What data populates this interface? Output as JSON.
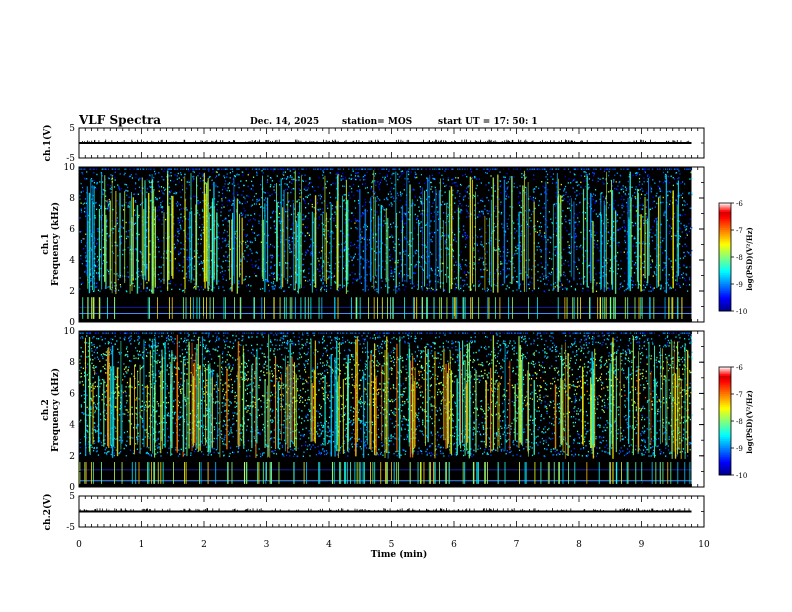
{
  "header": {
    "title": "VLF Spectra",
    "date": "Dec. 14, 2025",
    "station": "station= MOS",
    "start": "start  UT  =   17: 50: 1"
  },
  "chart_data": [
    {
      "type": "line",
      "name": "ch1-time-series",
      "ylabel": "ch.1(V)",
      "ylim": [
        -5,
        5
      ],
      "yticks": [
        "5",
        "-5"
      ],
      "xlim": [
        0,
        10
      ],
      "level": 0
    },
    {
      "type": "heatmap",
      "name": "ch1-spectrogram",
      "ylabel": "ch.1",
      "ylabel2": "Frequency (kHz)",
      "ylim": [
        0,
        10
      ],
      "yticks": [
        "0",
        "2",
        "4",
        "6",
        "8",
        "10"
      ],
      "xlim": [
        0,
        9.8
      ],
      "colorbar": {
        "label": "log(PSD)(V²/Hz)",
        "range": [
          -10,
          -6
        ],
        "ticks": [
          "-6",
          "-7",
          "-8",
          "-9",
          "-10"
        ]
      }
    },
    {
      "type": "heatmap",
      "name": "ch2-spectrogram",
      "ylabel": "ch.2",
      "ylabel2": "Frequency (kHz)",
      "ylim": [
        0,
        10
      ],
      "yticks": [
        "0",
        "2",
        "4",
        "6",
        "8",
        "10"
      ],
      "xlim": [
        0,
        9.8
      ],
      "colorbar": {
        "label": "log(PSD)(V²/Hz)",
        "range": [
          -10,
          -6
        ],
        "ticks": [
          "-6",
          "-7",
          "-8",
          "-9",
          "-10"
        ]
      }
    },
    {
      "type": "line",
      "name": "ch2-time-series",
      "ylabel": "ch.2(V)",
      "ylim": [
        -5,
        5
      ],
      "yticks": [
        "5",
        "-5"
      ],
      "xlim": [
        0,
        10
      ],
      "level": 0
    }
  ],
  "xaxis": {
    "label": "Time (min)",
    "ticks": [
      "0",
      "1",
      "2",
      "3",
      "4",
      "5",
      "6",
      "7",
      "8",
      "9",
      "10"
    ]
  }
}
